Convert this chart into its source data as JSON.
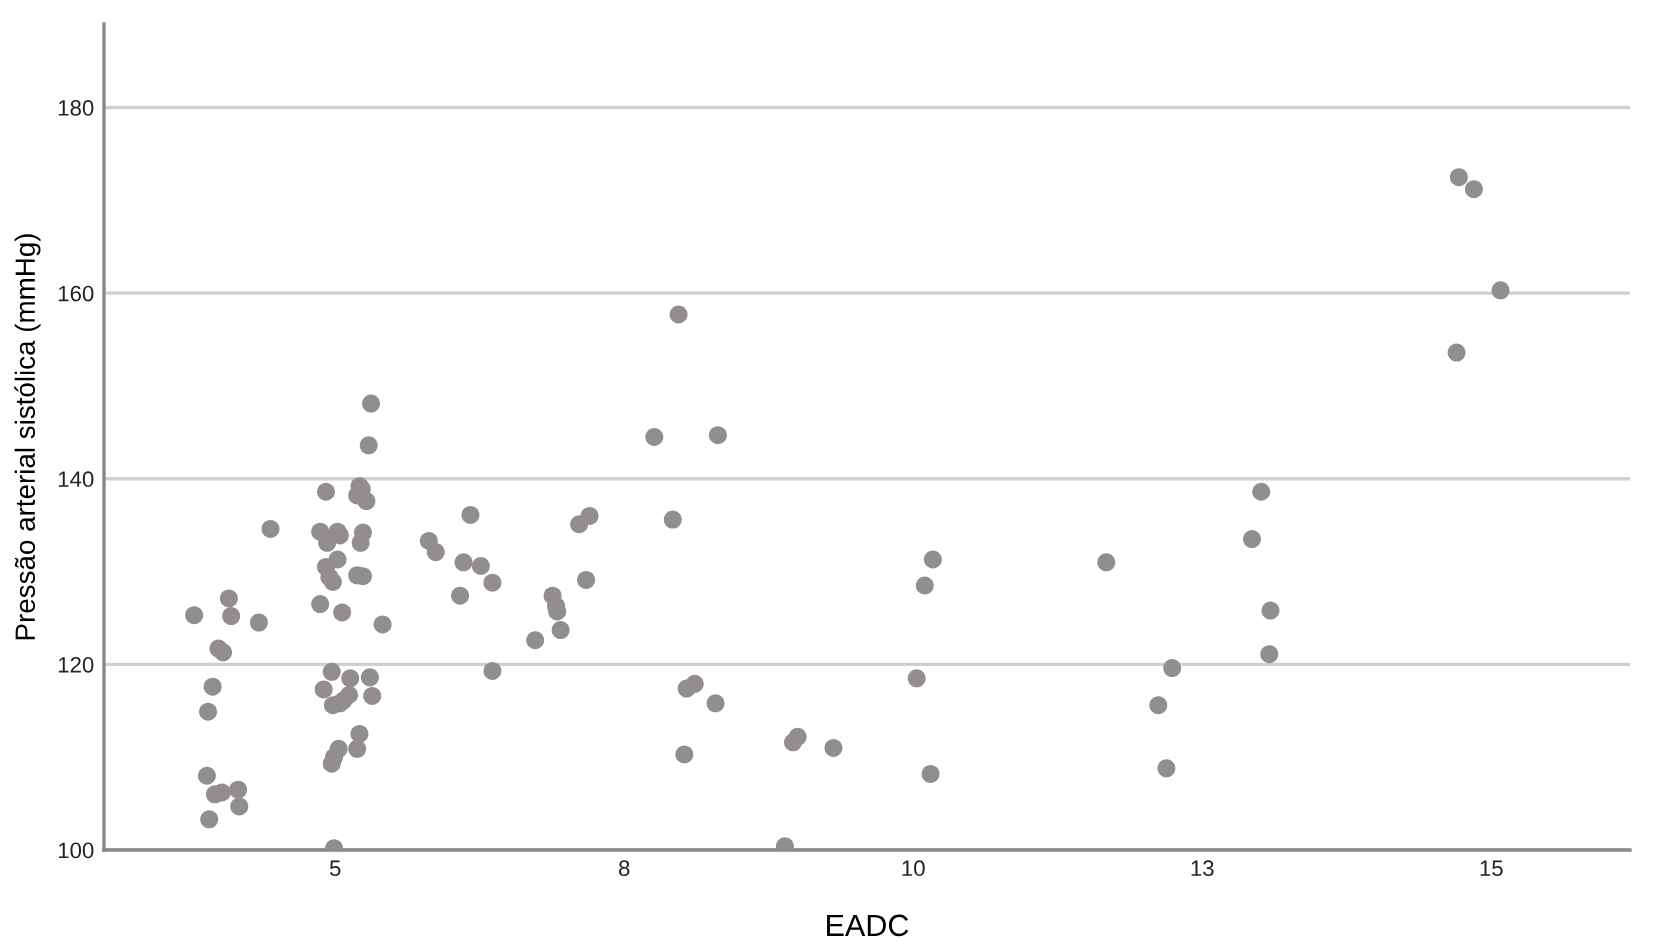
{
  "chart_data": {
    "type": "scatter",
    "xlabel": "EADC",
    "ylabel": "Pressão arterial sistólica (mmHg)",
    "xlim": [
      3.0,
      16.2
    ],
    "ylim": [
      100,
      189
    ],
    "xticks": [
      5,
      {
        "value": 7.5,
        "label": "8"
      },
      10,
      {
        "value": 12.5,
        "label": "13"
      },
      15
    ],
    "yticks": [
      100,
      120,
      140,
      160,
      180
    ],
    "grid": "y",
    "marker": "circle",
    "legend": false,
    "series": [
      {
        "color": "#928e8f",
        "x": [
          3.78,
          3.9,
          3.94,
          3.89,
          3.91,
          3.96,
          4.02,
          3.99,
          4.03,
          4.08,
          4.1,
          4.16,
          4.17,
          4.34,
          4.44,
          4.92,
          4.87,
          4.87,
          4.92,
          4.93,
          4.95,
          4.98,
          5.04,
          5.02,
          5.06,
          5.02,
          4.97,
          4.9,
          4.98,
          5.04,
          5.07,
          5.12,
          5.13,
          4.97,
          4.99,
          5.03,
          5.19,
          5.21,
          4.99,
          5.21,
          5.23,
          5.19,
          5.27,
          5.22,
          5.24,
          5.19,
          5.24,
          5.29,
          5.31,
          5.3,
          5.32,
          5.41,
          5.81,
          5.87,
          6.08,
          6.11,
          6.17,
          6.26,
          6.36,
          6.36,
          6.73,
          6.88,
          6.91,
          6.92,
          6.95,
          7.11,
          7.2,
          7.17,
          7.97,
          7.76,
          8.31,
          7.92,
          8.04,
          8.11,
          8.02,
          8.29,
          8.96,
          9.0,
          9.31,
          8.89,
          10.17,
          10.1,
          10.03,
          10.15,
          11.67,
          12.12,
          12.19,
          12.24,
          12.93,
          13.01,
          13.09,
          13.08,
          14.72,
          14.85,
          15.08,
          14.7
        ],
        "values": [
          125.3,
          114.9,
          117.6,
          108.0,
          103.3,
          106.0,
          106.2,
          121.7,
          121.3,
          127.1,
          125.2,
          106.5,
          104.7,
          124.5,
          134.6,
          138.6,
          134.3,
          126.5,
          130.5,
          133.1,
          129.4,
          128.9,
          133.9,
          131.3,
          125.6,
          134.3,
          119.2,
          117.3,
          115.6,
          115.8,
          116.1,
          116.7,
          118.5,
          109.3,
          110.0,
          110.9,
          110.9,
          112.5,
          100.2,
          139.2,
          138.9,
          138.2,
          137.6,
          133.1,
          134.2,
          129.6,
          129.5,
          143.6,
          148.1,
          118.6,
          116.6,
          124.3,
          133.3,
          132.1,
          127.4,
          131.0,
          136.1,
          130.6,
          128.8,
          119.3,
          122.6,
          127.4,
          126.3,
          125.7,
          123.7,
          135.1,
          136.0,
          129.1,
          157.7,
          144.5,
          144.7,
          135.6,
          117.4,
          117.9,
          110.3,
          115.8,
          111.6,
          112.2,
          111.0,
          100.4,
          131.3,
          128.5,
          118.5,
          108.2,
          131.0,
          115.6,
          108.8,
          119.6,
          133.5,
          138.6,
          125.8,
          121.1,
          172.5,
          171.2,
          160.3,
          153.6
        ]
      }
    ]
  }
}
